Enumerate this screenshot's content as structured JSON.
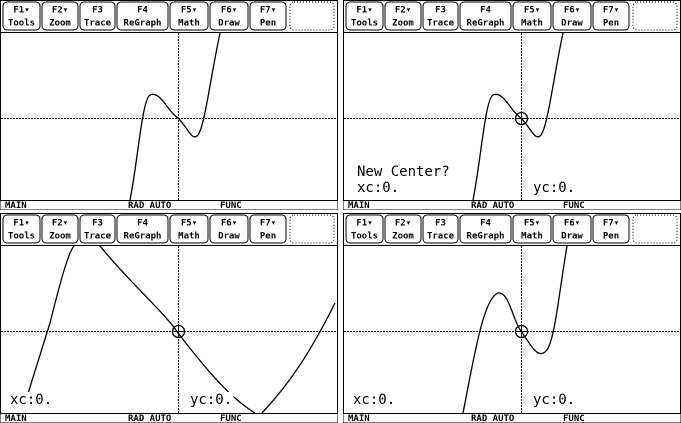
{
  "toolbar": [
    {
      "key": "F1▾",
      "label": "Tools"
    },
    {
      "key": "F2▾",
      "label": "Zoom"
    },
    {
      "key": "F3",
      "label": "Trace"
    },
    {
      "key": "F4",
      "label": "ReGraph"
    },
    {
      "key": "F5▾",
      "label": "Math"
    },
    {
      "key": "F6▾",
      "label": "Draw"
    },
    {
      "key": "F7▾",
      "label": "Pen"
    }
  ],
  "status": [
    "MAIN",
    "RAD AUTO",
    "FUNC"
  ],
  "panels": [
    {
      "texts": []
    },
    {
      "texts": [
        "New Center?",
        "xc:0.",
        "yc:0."
      ]
    },
    {
      "texts": [
        "xc:0.",
        "yc:0."
      ]
    },
    {
      "texts": [
        "xc:0.",
        "yc:0."
      ]
    }
  ]
}
